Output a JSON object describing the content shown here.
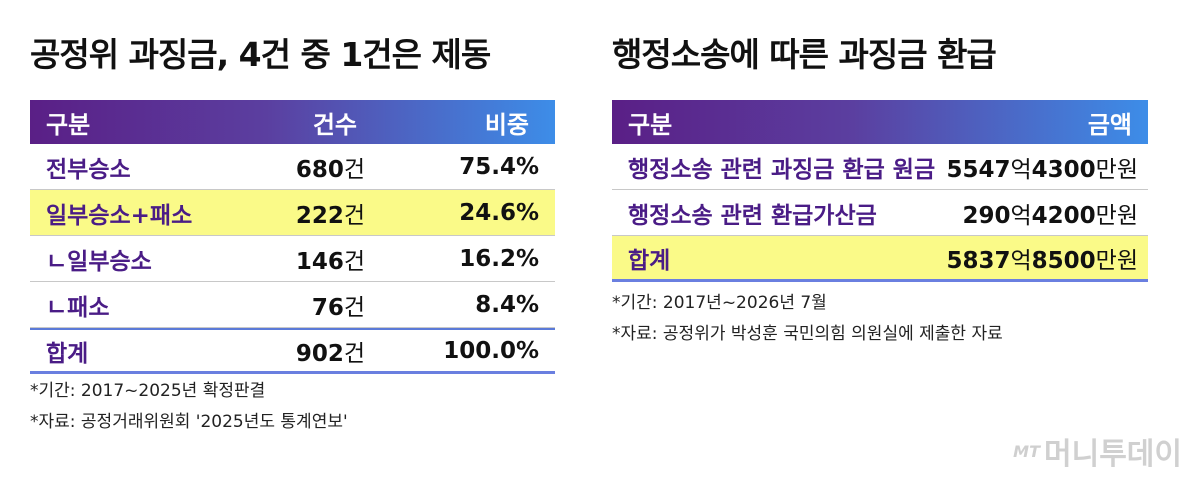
{
  "left": {
    "title": "공정위 과징금, 4건 중 1건은 제동",
    "headers": [
      "구분",
      "건수",
      "비중"
    ],
    "rows": [
      {
        "label": "전부승소",
        "count": "680",
        "unit": "건",
        "ratio": "75.4%",
        "highlight": false
      },
      {
        "label": "일부승소+패소",
        "count": "222",
        "unit": "건",
        "ratio": "24.6%",
        "highlight": true
      },
      {
        "label": "ㄴ일부승소",
        "count": "146",
        "unit": "건",
        "ratio": "16.2%",
        "highlight": false
      },
      {
        "label": "ㄴ패소",
        "count": "76",
        "unit": "건",
        "ratio": "8.4%",
        "highlight": false
      }
    ],
    "total": {
      "label": "합계",
      "count": "902",
      "unit": "건",
      "ratio": "100.0%"
    },
    "notes": [
      "*기간: 2017~2025년 확정판결",
      "*자료: 공정거래위원회 '2025년도 통계연보'"
    ]
  },
  "right": {
    "title": "행정소송에 따른 과징금 환급",
    "headers": [
      "구분",
      "금액"
    ],
    "rows": [
      {
        "label": "행정소송 관련 과징금 환급 원금",
        "amount_a": "5547",
        "unit_a": "억",
        "amount_b": "4300",
        "unit_b": "만원",
        "highlight": false
      },
      {
        "label": "행정소송 관련 환급가산금",
        "amount_a": "290",
        "unit_a": "억",
        "amount_b": "4200",
        "unit_b": "만원",
        "highlight": false
      },
      {
        "label": "합계",
        "amount_a": "5837",
        "unit_a": "억",
        "amount_b": "8500",
        "unit_b": "만원",
        "highlight": true
      }
    ],
    "notes": [
      "*기간: 2017년~2026년 7월",
      "*자료: 공정위가 박성훈 국민의힘 의원실에 제출한 자료"
    ]
  },
  "logo": {
    "mark": "MT",
    "text": "머니투데이"
  },
  "colors": {
    "header_start": "#5a1f86",
    "header_end": "#3d8de8",
    "highlight": "#fafa88",
    "label": "#4a1c86"
  }
}
